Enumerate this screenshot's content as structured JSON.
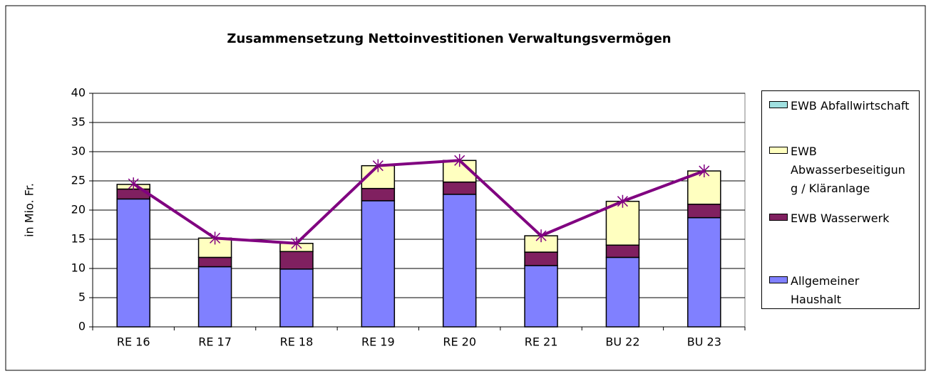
{
  "chart_data": {
    "type": "stacked_bar_line",
    "title": "Zusammensetzung Nettoinvestitionen Verwaltungsvermögen",
    "y_label": "in Mio. Fr.",
    "categories": [
      "RE 16",
      "RE 17",
      "RE 18",
      "RE 19",
      "RE 20",
      "RE 21",
      "BU 22",
      "BU 23"
    ],
    "series": [
      {
        "name": "Allgemeiner Haushalt",
        "color": "#8080ff",
        "values": [
          21.9,
          10.3,
          9.9,
          21.6,
          22.7,
          10.5,
          11.9,
          18.7
        ]
      },
      {
        "name": "EWB Wasserwerk",
        "color": "#802060",
        "values": [
          1.7,
          1.6,
          3.0,
          2.1,
          2.1,
          2.3,
          2.1,
          2.3
        ]
      },
      {
        "name": "EWB Abwasserbeseitigung / Kläranlage",
        "color": "#ffffc0",
        "values": [
          0.8,
          3.3,
          1.4,
          3.9,
          3.7,
          2.8,
          7.5,
          5.7
        ]
      },
      {
        "name": "EWB Abfallwirtschaft",
        "color": "#a0e0e0",
        "values": [
          0,
          0,
          0,
          0,
          0,
          0,
          0,
          0
        ]
      }
    ],
    "line": {
      "color": "#800080",
      "values": [
        24.5,
        15.2,
        14.3,
        27.6,
        28.5,
        15.6,
        21.5,
        26.7
      ]
    },
    "ylim": [
      0,
      40
    ],
    "yticks": [
      0,
      5,
      10,
      15,
      20,
      25,
      30,
      35,
      40
    ],
    "grid": true,
    "legend": "right"
  }
}
